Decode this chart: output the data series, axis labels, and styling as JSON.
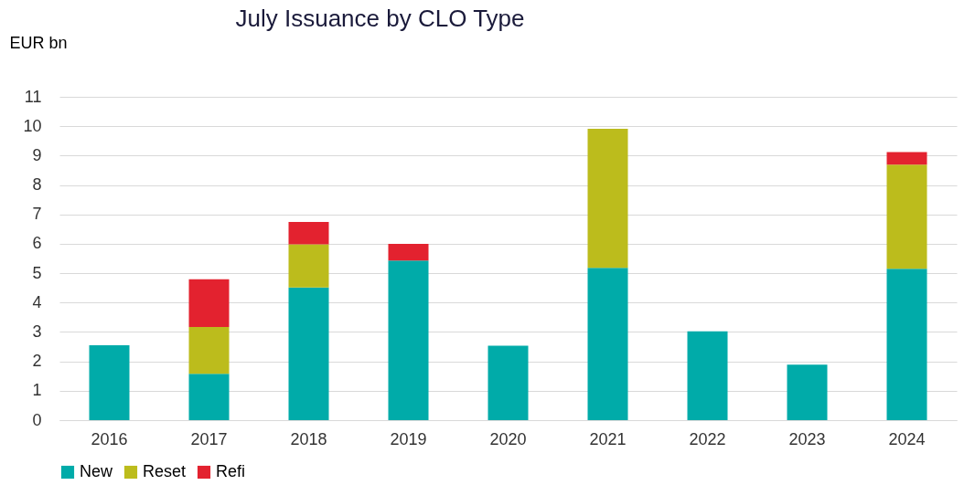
{
  "chart_data": {
    "type": "bar",
    "title": "July Issuance by CLO Type",
    "ylabel": "EUR bn",
    "categories": [
      "2016",
      "2017",
      "2018",
      "2019",
      "2020",
      "2021",
      "2022",
      "2023",
      "2024"
    ],
    "series": [
      {
        "name": "New",
        "color": "#00aba9",
        "values": [
          2.55,
          1.58,
          4.51,
          5.43,
          2.53,
          5.18,
          3.02,
          1.89,
          5.15
        ]
      },
      {
        "name": "Reset",
        "color": "#bcbc1c",
        "values": [
          null,
          1.59,
          1.47,
          null,
          null,
          4.73,
          null,
          null,
          3.54
        ]
      },
      {
        "name": "Refi",
        "color": "#e3222f",
        "values": [
          null,
          1.62,
          0.76,
          0.57,
          null,
          null,
          null,
          null,
          0.43
        ]
      }
    ],
    "stacked": true,
    "ylim": [
      0,
      11
    ],
    "yticks": [
      0,
      1,
      2,
      3,
      4,
      5,
      6,
      7,
      8,
      9,
      10,
      11
    ],
    "grid": "y",
    "legend": "bottom"
  }
}
